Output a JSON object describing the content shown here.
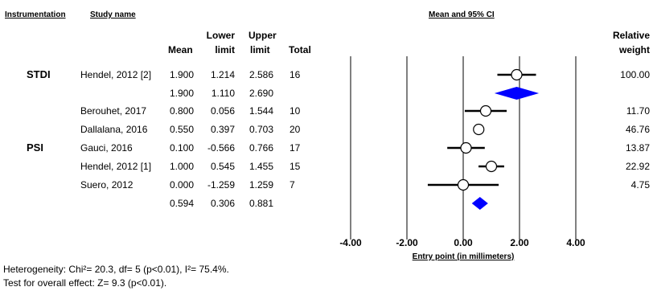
{
  "headers": {
    "instrumentation": "Instrumentation",
    "study_name": "Study name",
    "mean_ci": "Mean and 95% CI",
    "mean": "Mean",
    "lower_1": "Lower",
    "lower_2": "limit",
    "upper_1": "Upper",
    "upper_2": "limit",
    "total": "Total",
    "relw_1": "Relative",
    "relw_2": "weight"
  },
  "groups": {
    "stdi": "STDI",
    "psi": "PSI"
  },
  "rows": [
    {
      "study": "Hendel, 2012 [2]",
      "mean": "1.900",
      "lower": "1.214",
      "upper": "2.586",
      "total": "16",
      "weight": "100.00"
    },
    {
      "study": "",
      "mean": "1.900",
      "lower": "1.110",
      "upper": "2.690",
      "total": "",
      "weight": ""
    },
    {
      "study": "Berouhet, 2017",
      "mean": "0.800",
      "lower": "0.056",
      "upper": "1.544",
      "total": "10",
      "weight": "11.70"
    },
    {
      "study": "Dallalana, 2016",
      "mean": "0.550",
      "lower": "0.397",
      "upper": "0.703",
      "total": "20",
      "weight": "46.76"
    },
    {
      "study": "Gauci, 2016",
      "mean": "0.100",
      "lower": "-0.566",
      "upper": "0.766",
      "total": "17",
      "weight": "13.87"
    },
    {
      "study": "Hendel, 2012 [1]",
      "mean": "1.000",
      "lower": "0.545",
      "upper": "1.455",
      "total": "15",
      "weight": "22.92"
    },
    {
      "study": "Suero, 2012",
      "mean": "0.000",
      "lower": "-1.259",
      "upper": "1.259",
      "total": "7",
      "weight": "4.75"
    },
    {
      "study": "",
      "mean": "0.594",
      "lower": "0.306",
      "upper": "0.881",
      "total": "",
      "weight": ""
    }
  ],
  "footer": {
    "heterogeneity": "Heterogeneity: Chi²= 20.3, df= 5 (p<0.01), I²= 75.4%.",
    "overall": "Test for overall effect: Z= 9.3 (p<0.01)."
  },
  "chart_data": {
    "type": "scatter",
    "xlabel": "Entry point (in millimeters)",
    "xlim": [
      -4,
      4
    ],
    "x_ticks": [
      -4,
      -2,
      0,
      2,
      4
    ],
    "x_tick_labels": [
      "-4.00",
      "-2.00",
      "0.00",
      "2.00",
      "4.00"
    ],
    "studies": [
      {
        "mean": 1.9,
        "lower": 1.214,
        "upper": 2.586,
        "kind": "study"
      },
      {
        "mean": 1.9,
        "lower": 1.11,
        "upper": 2.69,
        "kind": "summary"
      },
      {
        "mean": 0.8,
        "lower": 0.056,
        "upper": 1.544,
        "kind": "study"
      },
      {
        "mean": 0.55,
        "lower": 0.397,
        "upper": 0.703,
        "kind": "study"
      },
      {
        "mean": 0.1,
        "lower": -0.566,
        "upper": 0.766,
        "kind": "study"
      },
      {
        "mean": 1.0,
        "lower": 0.545,
        "upper": 1.455,
        "kind": "study"
      },
      {
        "mean": 0.0,
        "lower": -1.259,
        "upper": 1.259,
        "kind": "study"
      },
      {
        "mean": 0.594,
        "lower": 0.306,
        "upper": 0.881,
        "kind": "summary"
      }
    ],
    "summary_color": "#0000ff"
  }
}
